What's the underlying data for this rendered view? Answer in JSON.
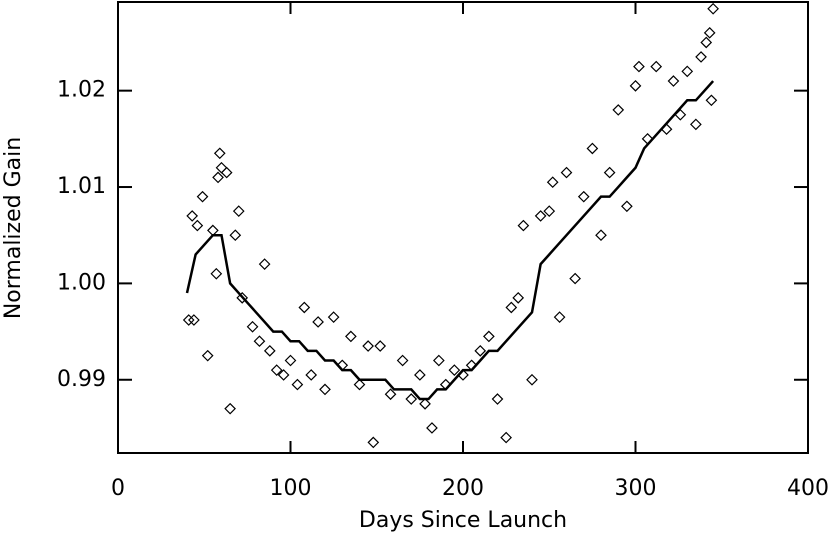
{
  "chart_data": {
    "type": "line",
    "xlabel": "Days Since Launch",
    "ylabel": "Normalized Gain",
    "xlim": [
      0,
      400
    ],
    "xticks": [
      0,
      100,
      200,
      300,
      400
    ],
    "ylim": [
      0.9824,
      1.0292
    ],
    "yticks": [
      0.99,
      {
        "value": 1,
        "label": "1.00"
      },
      1.01,
      1.02
    ],
    "series": [
      {
        "type": "line",
        "color": "#000000",
        "x": [
          40,
          45,
          50,
          55,
          60,
          65,
          70,
          75,
          80,
          85,
          90,
          95,
          100,
          105,
          110,
          115,
          120,
          125,
          130,
          135,
          140,
          145,
          150,
          155,
          160,
          165,
          170,
          175,
          180,
          185,
          190,
          195,
          200,
          205,
          210,
          215,
          220,
          225,
          230,
          235,
          240,
          245,
          250,
          255,
          260,
          265,
          270,
          275,
          280,
          285,
          290,
          295,
          300,
          305,
          310,
          315,
          320,
          325,
          330,
          335,
          340,
          345
        ],
        "values": [
          0.999,
          1.003,
          1.004,
          1.005,
          1.005,
          1.0,
          0.999,
          0.998,
          0.997,
          0.996,
          0.995,
          0.995,
          0.994,
          0.994,
          0.993,
          0.993,
          0.992,
          0.992,
          0.991,
          0.991,
          0.99,
          0.99,
          0.99,
          0.99,
          0.989,
          0.989,
          0.989,
          0.988,
          0.988,
          0.989,
          0.989,
          0.99,
          0.991,
          0.991,
          0.992,
          0.993,
          0.993,
          0.994,
          0.995,
          0.996,
          0.997,
          1.002,
          1.003,
          1.004,
          1.005,
          1.006,
          1.007,
          1.008,
          1.009,
          1.009,
          1.01,
          1.011,
          1.012,
          1.014,
          1.015,
          1.016,
          1.017,
          1.018,
          1.019,
          1.019,
          1.02,
          1.021
        ]
      },
      {
        "type": "scatter",
        "color": "#000000",
        "x": [
          41,
          44,
          43,
          46,
          49,
          52,
          55,
          57,
          58,
          59,
          60,
          63,
          65,
          68,
          70,
          72,
          78,
          82,
          85,
          88,
          92,
          96,
          100,
          104,
          108,
          112,
          116,
          120,
          125,
          130,
          135,
          140,
          145,
          148,
          152,
          158,
          165,
          170,
          175,
          178,
          182,
          186,
          190,
          195,
          200,
          205,
          210,
          215,
          220,
          225,
          228,
          232,
          235,
          240,
          245,
          250,
          252,
          256,
          260,
          265,
          270,
          275,
          280,
          285,
          290,
          295,
          300,
          302,
          307,
          312,
          318,
          322,
          326,
          330,
          335,
          338,
          341,
          343,
          345,
          344
        ],
        "values": [
          0.9962,
          0.9962,
          1.007,
          1.006,
          1.009,
          0.9925,
          1.0055,
          1.001,
          1.011,
          1.0135,
          1.012,
          1.0115,
          0.987,
          1.005,
          1.0075,
          0.9985,
          0.9955,
          0.994,
          1.002,
          0.993,
          0.991,
          0.9905,
          0.992,
          0.9895,
          0.9975,
          0.9905,
          0.996,
          0.989,
          0.9965,
          0.9915,
          0.9945,
          0.9895,
          0.9935,
          0.9835,
          0.9935,
          0.9885,
          0.992,
          0.988,
          0.9905,
          0.9875,
          0.985,
          0.992,
          0.9895,
          0.991,
          0.9905,
          0.9915,
          0.993,
          0.9945,
          0.988,
          0.984,
          0.9975,
          0.9985,
          1.006,
          0.99,
          1.007,
          1.0075,
          1.0105,
          0.9965,
          1.0115,
          1.0005,
          1.009,
          1.014,
          1.005,
          1.0115,
          1.018,
          1.008,
          1.0205,
          1.0225,
          1.015,
          1.0225,
          1.016,
          1.021,
          1.0175,
          1.022,
          1.0165,
          1.0235,
          1.025,
          1.026,
          1.0285,
          1.019
        ]
      }
    ]
  }
}
